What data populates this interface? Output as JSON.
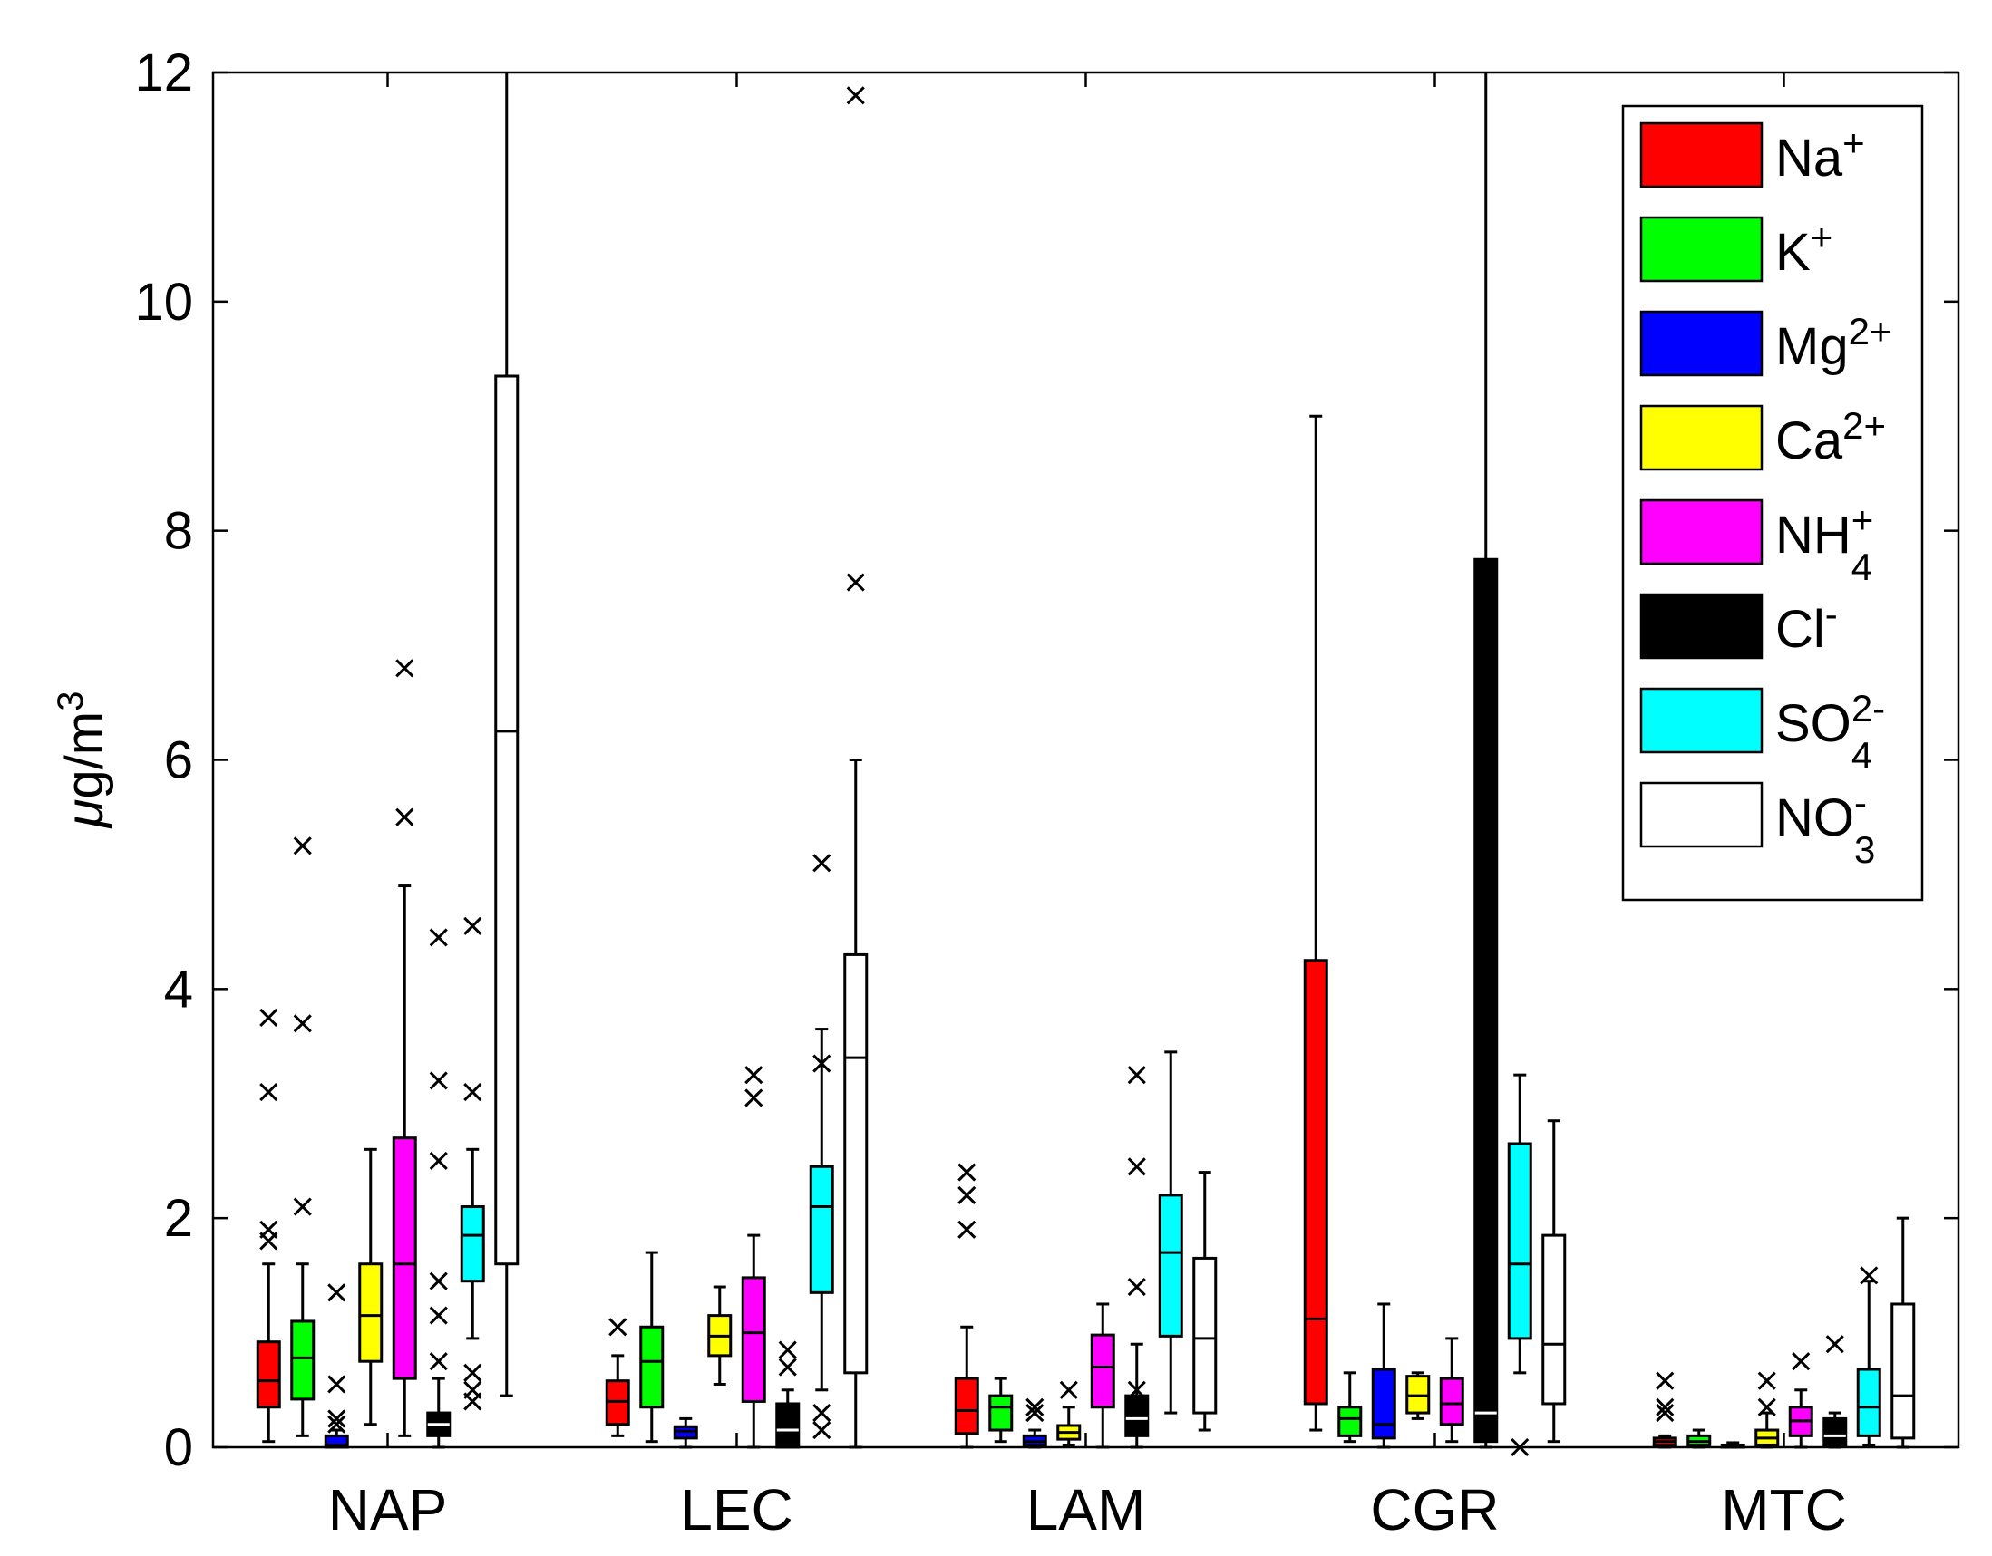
{
  "chart_data": {
    "type": "box",
    "ylabel_prefix": "μ",
    "ylabel_rest": "g/m",
    "ylabel_sup": "3",
    "ylim": [
      0,
      12
    ],
    "yticks": [
      0,
      2,
      4,
      6,
      8,
      10,
      12
    ],
    "ytick_labels": [
      "0",
      "2",
      "4",
      "6",
      "8",
      "10",
      "12"
    ],
    "grid": false,
    "legend_position": "top-right",
    "categories": [
      "NAP",
      "LEC",
      "LAM",
      "CGR",
      "MTC"
    ],
    "series": [
      {
        "name": "Na",
        "sup": "+",
        "sub": "",
        "color": "#ff0000",
        "line": "#000000"
      },
      {
        "name": "K",
        "sup": "+",
        "sub": "",
        "color": "#00ff00",
        "line": "#000000"
      },
      {
        "name": "Mg",
        "sup": "2+",
        "sub": "",
        "color": "#0000ff",
        "line": "#000000"
      },
      {
        "name": "Ca",
        "sup": "2+",
        "sub": "",
        "color": "#ffff00",
        "line": "#000000"
      },
      {
        "name": "NH",
        "sup": "+",
        "sub": "4",
        "color": "#ff00ff",
        "line": "#000000"
      },
      {
        "name": "Cl",
        "sup": "-",
        "sub": "",
        "color": "#000000",
        "line": "#ffffff"
      },
      {
        "name": "SO",
        "sup": "2-",
        "sub": "4",
        "color": "#00ffff",
        "line": "#000000"
      },
      {
        "name": "NO",
        "sup": "-",
        "sub": "3",
        "color": "#ffffff",
        "line": "#000000"
      }
    ],
    "boxes": [
      [
        {
          "min": 0.05,
          "q1": 0.35,
          "med": 0.58,
          "q3": 0.92,
          "max": 1.6,
          "outliers": [
            1.8,
            1.9,
            3.1,
            3.75
          ]
        },
        {
          "min": 0.1,
          "q1": 0.42,
          "med": 0.78,
          "q3": 1.1,
          "max": 1.6,
          "outliers": [
            2.1,
            3.7,
            5.25
          ]
        },
        {
          "min": 0.0,
          "q1": 0.0,
          "med": 0.02,
          "q3": 0.1,
          "max": 0.15,
          "outliers": [
            0.2,
            0.25,
            0.55,
            1.35
          ]
        },
        {
          "min": 0.2,
          "q1": 0.75,
          "med": 1.15,
          "q3": 1.6,
          "max": 2.6,
          "outliers": []
        },
        {
          "min": 0.1,
          "q1": 0.6,
          "med": 1.6,
          "q3": 2.7,
          "max": 4.9,
          "outliers": [
            5.5,
            6.8
          ]
        },
        {
          "min": 0.0,
          "q1": 0.1,
          "med": 0.2,
          "q3": 0.3,
          "max": 0.6,
          "outliers": [
            0.75,
            1.15,
            1.45,
            2.5,
            3.2,
            4.45
          ]
        },
        {
          "min": 0.95,
          "q1": 1.45,
          "med": 1.85,
          "q3": 2.1,
          "max": 2.6,
          "outliers": [
            0.4,
            0.5,
            0.65,
            3.1,
            4.55
          ]
        },
        {
          "min": 0.45,
          "q1": 1.6,
          "med": 6.25,
          "q3": 9.35,
          "max": 12.0,
          "outliers": []
        }
      ],
      [
        {
          "min": 0.1,
          "q1": 0.2,
          "med": 0.4,
          "q3": 0.58,
          "max": 0.8,
          "outliers": [
            1.05
          ]
        },
        {
          "min": 0.05,
          "q1": 0.35,
          "med": 0.75,
          "q3": 1.05,
          "max": 1.7,
          "outliers": []
        },
        {
          "min": 0.0,
          "q1": 0.08,
          "med": 0.14,
          "q3": 0.18,
          "max": 0.25,
          "outliers": []
        },
        {
          "min": 0.55,
          "q1": 0.8,
          "med": 0.97,
          "q3": 1.15,
          "max": 1.4,
          "outliers": []
        },
        {
          "min": 0.0,
          "q1": 0.4,
          "med": 1.0,
          "q3": 1.48,
          "max": 1.85,
          "outliers": [
            3.05,
            3.25
          ]
        },
        {
          "min": 0.0,
          "q1": 0.0,
          "med": 0.15,
          "q3": 0.38,
          "max": 0.5,
          "outliers": [
            0.7,
            0.85
          ]
        },
        {
          "min": 0.5,
          "q1": 1.35,
          "med": 2.1,
          "q3": 2.45,
          "max": 3.65,
          "outliers": [
            0.15,
            0.3,
            3.35,
            5.1
          ]
        },
        {
          "min": 0.0,
          "q1": 0.65,
          "med": 3.4,
          "q3": 4.3,
          "max": 6.0,
          "outliers": [
            7.55,
            11.8
          ]
        }
      ],
      [
        {
          "min": 0.0,
          "q1": 0.12,
          "med": 0.32,
          "q3": 0.6,
          "max": 1.05,
          "outliers": [
            1.9,
            2.2,
            2.4
          ]
        },
        {
          "min": 0.05,
          "q1": 0.15,
          "med": 0.35,
          "q3": 0.45,
          "max": 0.6,
          "outliers": []
        },
        {
          "min": 0.0,
          "q1": 0.02,
          "med": 0.05,
          "q3": 0.1,
          "max": 0.15,
          "outliers": [
            0.3,
            0.35
          ]
        },
        {
          "min": 0.02,
          "q1": 0.07,
          "med": 0.13,
          "q3": 0.19,
          "max": 0.35,
          "outliers": [
            0.5
          ]
        },
        {
          "min": 0.0,
          "q1": 0.35,
          "med": 0.7,
          "q3": 0.98,
          "max": 1.25,
          "outliers": []
        },
        {
          "min": 0.0,
          "q1": 0.1,
          "med": 0.25,
          "q3": 0.45,
          "max": 0.9,
          "outliers": [
            0.5,
            1.4,
            2.45,
            3.25
          ]
        },
        {
          "min": 0.3,
          "q1": 0.97,
          "med": 1.7,
          "q3": 2.2,
          "max": 3.45,
          "outliers": []
        },
        {
          "min": 0.15,
          "q1": 0.3,
          "med": 0.95,
          "q3": 1.65,
          "max": 2.4,
          "outliers": []
        }
      ],
      [
        {
          "min": 0.15,
          "q1": 0.38,
          "med": 1.12,
          "q3": 4.25,
          "max": 9.0,
          "outliers": []
        },
        {
          "min": 0.05,
          "q1": 0.1,
          "med": 0.25,
          "q3": 0.35,
          "max": 0.65,
          "outliers": []
        },
        {
          "min": 0.0,
          "q1": 0.08,
          "med": 0.2,
          "q3": 0.68,
          "max": 1.25,
          "outliers": []
        },
        {
          "min": 0.25,
          "q1": 0.3,
          "med": 0.45,
          "q3": 0.62,
          "max": 0.65,
          "outliers": []
        },
        {
          "min": 0.05,
          "q1": 0.2,
          "med": 0.38,
          "q3": 0.6,
          "max": 0.95,
          "outliers": []
        },
        {
          "min": 0.0,
          "q1": 0.05,
          "med": 0.3,
          "q3": 7.75,
          "max": 12.0,
          "outliers": []
        },
        {
          "min": 0.65,
          "q1": 0.95,
          "med": 1.6,
          "q3": 2.65,
          "max": 3.25,
          "outliers": [
            0.0
          ]
        },
        {
          "min": 0.05,
          "q1": 0.38,
          "med": 0.9,
          "q3": 1.85,
          "max": 2.85,
          "outliers": []
        }
      ],
      [
        {
          "min": 0.0,
          "q1": 0.02,
          "med": 0.05,
          "q3": 0.08,
          "max": 0.1,
          "outliers": [
            0.3,
            0.35,
            0.58
          ]
        },
        {
          "min": 0.0,
          "q1": 0.02,
          "med": 0.05,
          "q3": 0.1,
          "max": 0.15,
          "outliers": []
        },
        {
          "min": 0.0,
          "q1": 0.0,
          "med": 0.01,
          "q3": 0.02,
          "max": 0.04,
          "outliers": []
        },
        {
          "min": 0.0,
          "q1": 0.02,
          "med": 0.08,
          "q3": 0.15,
          "max": 0.3,
          "outliers": [
            0.35,
            0.58
          ]
        },
        {
          "min": 0.0,
          "q1": 0.1,
          "med": 0.23,
          "q3": 0.35,
          "max": 0.5,
          "outliers": [
            0.75
          ]
        },
        {
          "min": 0.0,
          "q1": 0.02,
          "med": 0.1,
          "q3": 0.25,
          "max": 0.3,
          "outliers": [
            0.9
          ]
        },
        {
          "min": 0.02,
          "q1": 0.1,
          "med": 0.35,
          "q3": 0.68,
          "max": 1.45,
          "outliers": [
            1.5
          ]
        },
        {
          "min": 0.0,
          "q1": 0.08,
          "med": 0.45,
          "q3": 1.25,
          "max": 2.0,
          "outliers": []
        }
      ]
    ]
  }
}
